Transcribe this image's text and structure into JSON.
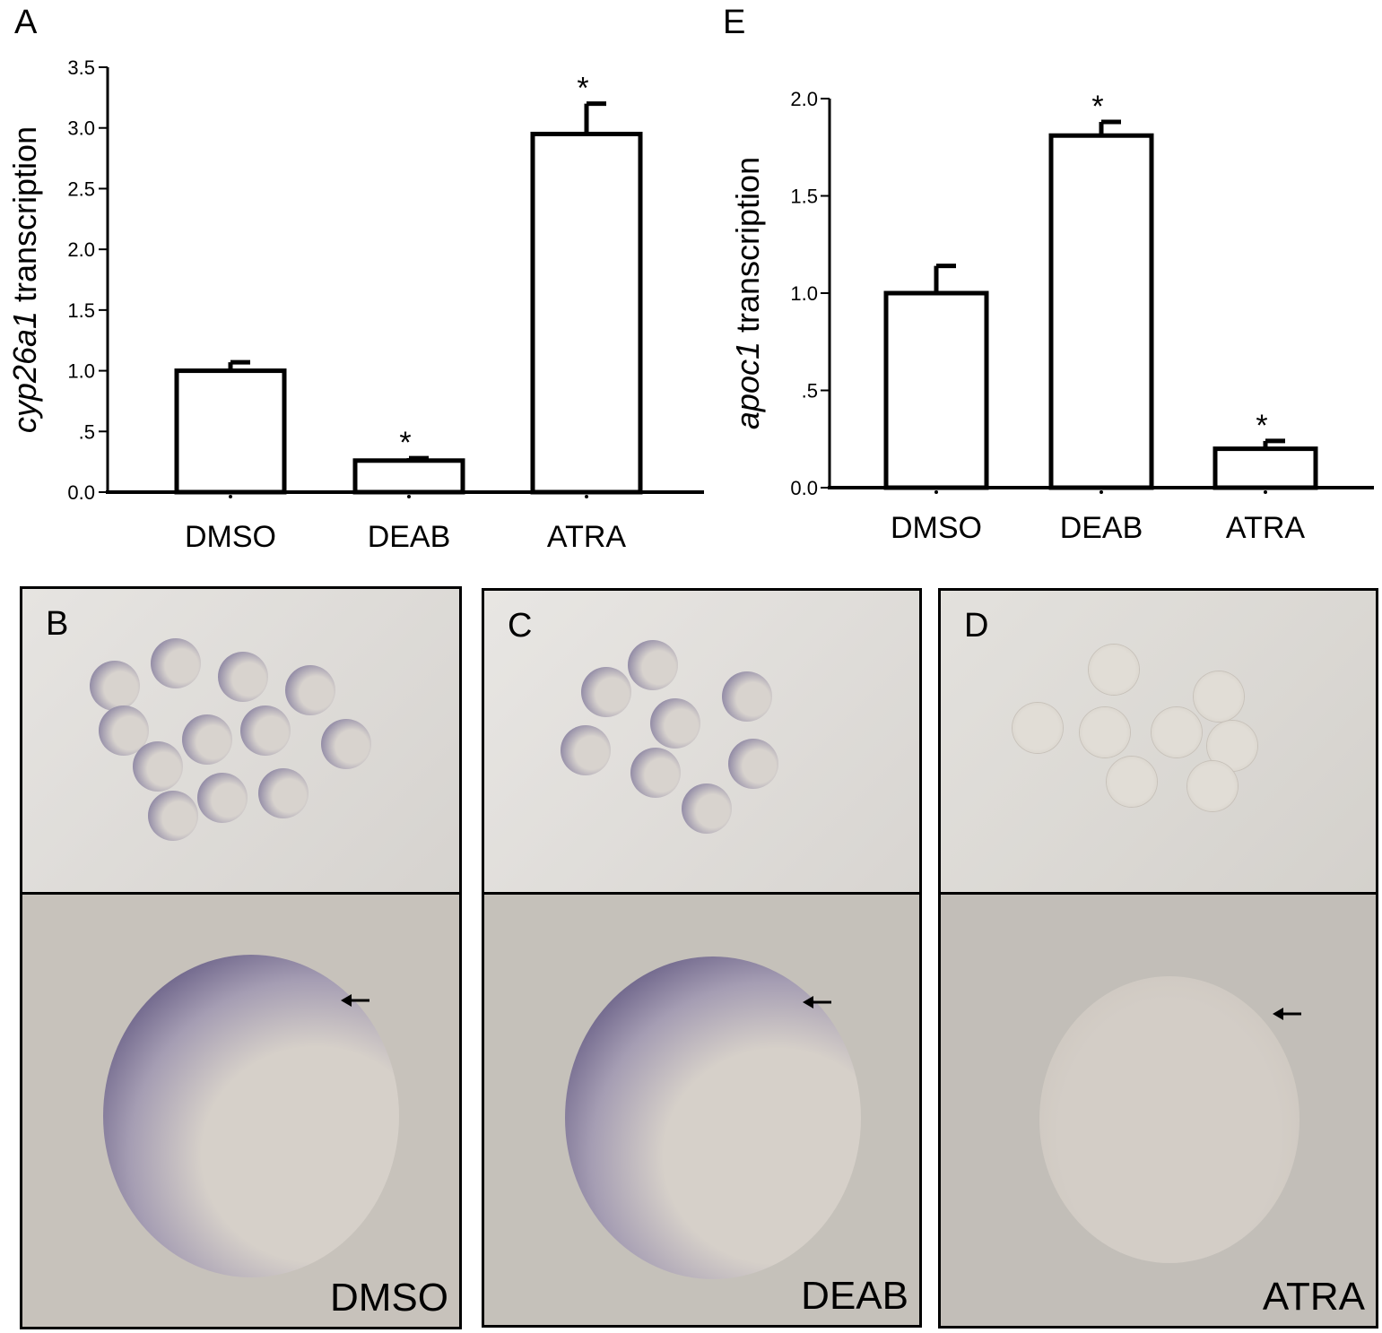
{
  "panels": {
    "a_letter": "A",
    "e_letter": "E",
    "b_letter": "B",
    "c_letter": "C",
    "d_letter": "D"
  },
  "chart_data": [
    {
      "type": "bar",
      "panel": "A",
      "categories": [
        "DMSO",
        "DEAB",
        "ATRA"
      ],
      "values": [
        1.0,
        0.26,
        2.95
      ],
      "errors": [
        0.07,
        0.02,
        0.25
      ],
      "significant": [
        false,
        true,
        true
      ],
      "significance_marker": "*",
      "ylabel_italic": "cyp26a1",
      "ylabel_rest": " transcription",
      "ylim": [
        0,
        3.5
      ],
      "yticks": [
        0,
        0.5,
        1.0,
        1.5,
        2.0,
        2.5,
        3.0,
        3.5
      ],
      "ytick_labels": [
        "0.0",
        ".5",
        "1.0",
        "1.5",
        "2.0",
        "2.5",
        "3.0",
        "3.5"
      ]
    },
    {
      "type": "bar",
      "panel": "E",
      "categories": [
        "DMSO",
        "DEAB",
        "ATRA"
      ],
      "values": [
        1.0,
        1.81,
        0.2
      ],
      "errors": [
        0.14,
        0.07,
        0.04
      ],
      "significant": [
        false,
        true,
        true
      ],
      "significance_marker": "*",
      "ylabel_italic": "apoc1",
      "ylabel_rest": " transcription",
      "ylim": [
        0,
        2.0
      ],
      "yticks": [
        0,
        0.5,
        1.0,
        1.5,
        2.0
      ],
      "ytick_labels": [
        "0.0",
        ".5",
        "1.0",
        "1.5",
        "2.0"
      ]
    }
  ],
  "photos": [
    {
      "letter": "B",
      "treatment": "DMSO",
      "stain": "strong"
    },
    {
      "letter": "C",
      "treatment": "DEAB",
      "stain": "strong"
    },
    {
      "letter": "D",
      "treatment": "ATRA",
      "stain": "weak"
    }
  ],
  "colors": {
    "stain": "#4a4070",
    "background_photo": "#c9c6c2",
    "embryo_light": "#d8d3ce"
  }
}
